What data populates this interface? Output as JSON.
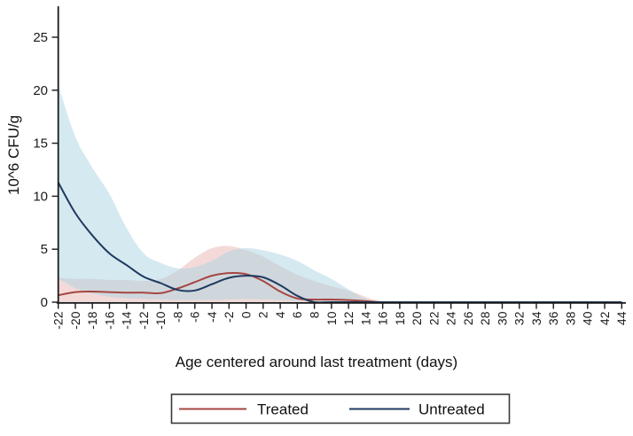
{
  "chart_data": {
    "type": "line",
    "title": "",
    "xlabel": "Age centered around last treatment (days)",
    "ylabel": "10^6 CFU/g",
    "xlim": [
      -22,
      44
    ],
    "ylim": [
      0,
      25
    ],
    "grid": false,
    "legend_position": "bottom-center-boxed",
    "yticks": [
      0,
      5,
      10,
      15,
      20,
      25
    ],
    "x": [
      -22,
      -20,
      -18,
      -16,
      -14,
      -12,
      -10,
      -8,
      -6,
      -4,
      -2,
      0,
      2,
      4,
      6,
      8,
      10,
      12,
      14,
      16,
      18,
      20,
      22,
      24,
      26,
      28,
      30,
      32,
      34,
      36,
      38,
      40,
      42,
      44
    ],
    "series": [
      {
        "name": "Treated",
        "color": "#a54641",
        "band_color": "#e8b5b1",
        "values": [
          0.65,
          0.95,
          1.0,
          0.95,
          0.9,
          0.9,
          0.85,
          1.3,
          1.9,
          2.5,
          2.75,
          2.65,
          2.0,
          1.0,
          0.35,
          0.25,
          0.25,
          0.2,
          0.1,
          0,
          0,
          0,
          0,
          0,
          0,
          0,
          0,
          0,
          0,
          0,
          0,
          0,
          0,
          0
        ],
        "ci_upper": [
          2.3,
          2.2,
          2.2,
          2.1,
          2.1,
          2.0,
          2.2,
          3.0,
          4.2,
          5.1,
          5.3,
          4.9,
          4.3,
          3.4,
          2.6,
          2.0,
          1.5,
          1.1,
          0.5,
          0,
          0,
          0,
          0,
          0,
          0,
          0,
          0,
          0,
          0,
          0,
          0,
          0,
          0,
          0
        ],
        "ci_lower": [
          0.05,
          0.05,
          0.05,
          0.05,
          0.05,
          0.05,
          0.05,
          0.05,
          0.05,
          0.05,
          0.05,
          0.05,
          0.05,
          0.05,
          0.05,
          0.05,
          0,
          0,
          0,
          0,
          0,
          0,
          0,
          0,
          0,
          0,
          0,
          0,
          0,
          0,
          0,
          0,
          0,
          0
        ]
      },
      {
        "name": "Untreated",
        "color": "#1f3a60",
        "band_color": "#abd3e2",
        "values": [
          11.3,
          8.4,
          6.3,
          4.6,
          3.5,
          2.4,
          1.8,
          1.15,
          1.1,
          1.7,
          2.3,
          2.5,
          2.35,
          1.6,
          0.6,
          0,
          0,
          0,
          0,
          0,
          0,
          0,
          0,
          0,
          0,
          0,
          0,
          0,
          0,
          0,
          0,
          0,
          0,
          0
        ],
        "ci_upper": [
          20.5,
          15.6,
          12.7,
          10.2,
          7.0,
          4.6,
          3.7,
          3.2,
          3.3,
          3.9,
          4.8,
          5.1,
          4.9,
          4.5,
          3.9,
          3.0,
          2.2,
          1.2,
          0.3,
          0,
          0,
          0,
          0,
          0,
          0,
          0,
          0,
          0,
          0,
          0,
          0,
          0,
          0,
          0
        ],
        "ci_lower": [
          2.2,
          1.3,
          0.8,
          0.5,
          0.35,
          0.3,
          0.25,
          0.2,
          0.2,
          0.2,
          0.25,
          0.3,
          0.25,
          0.2,
          0.15,
          0.1,
          0.05,
          0,
          0,
          0,
          0,
          0,
          0,
          0,
          0,
          0,
          0,
          0,
          0,
          0,
          0,
          0,
          0,
          0
        ]
      }
    ]
  }
}
